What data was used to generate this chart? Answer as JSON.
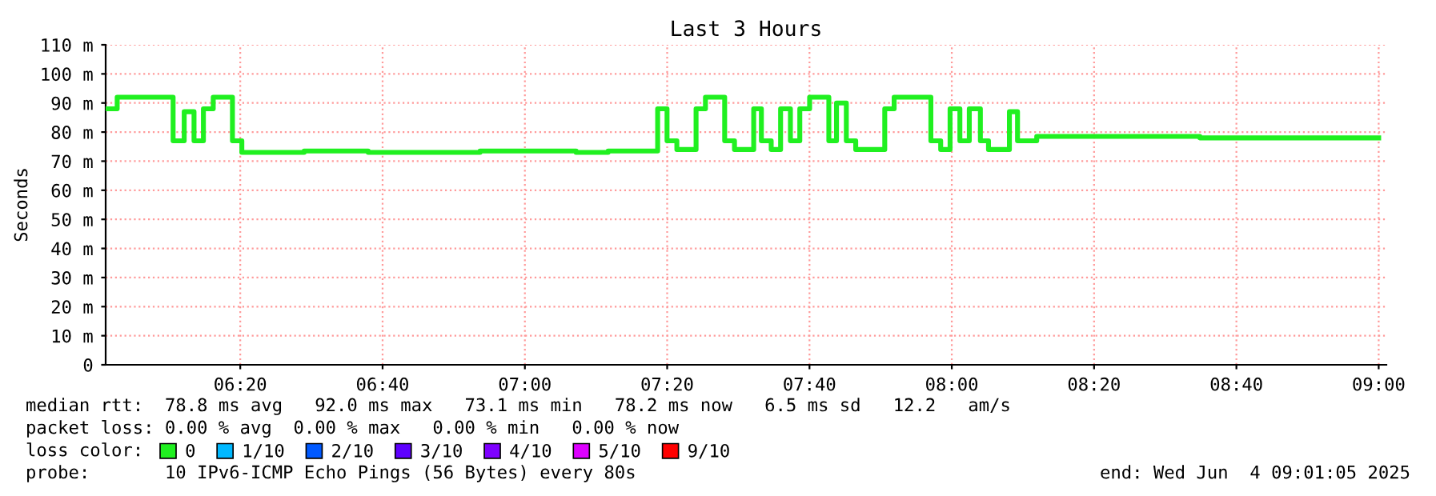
{
  "chart_data": {
    "type": "step",
    "title": "Last 3 Hours",
    "ylabel": "Seconds",
    "x": [
      6.019,
      6.045,
      6.176,
      6.202,
      6.225,
      6.247,
      6.27,
      6.315,
      6.337,
      6.483,
      6.633,
      6.895,
      7.12,
      7.195,
      7.311,
      7.333,
      7.356,
      7.401,
      7.423,
      7.468,
      7.491,
      7.536,
      7.554,
      7.577,
      7.599,
      7.622,
      7.644,
      7.667,
      7.712,
      7.73,
      7.753,
      7.775,
      7.843,
      7.865,
      7.951,
      7.974,
      7.996,
      8.019,
      8.041,
      8.067,
      8.086,
      8.135,
      8.154,
      8.199,
      8.581,
      9.0
    ],
    "series": [
      {
        "name": "0",
        "color": "#20f020",
        "values": [
          88,
          92,
          77,
          87,
          77,
          88,
          92,
          77,
          73,
          73.5,
          73,
          73.5,
          73,
          73.5,
          88,
          77,
          74,
          88,
          92,
          77,
          74,
          88,
          77,
          74,
          88,
          77,
          88,
          92,
          77,
          90,
          77,
          74,
          88,
          92,
          77,
          74,
          88,
          77,
          88,
          77,
          74,
          87,
          77,
          78.5,
          78,
          78
        ]
      },
      {
        "name": "1/10",
        "color": "#00b8ff",
        "values": [
          null,
          null,
          null,
          null,
          null,
          null,
          null,
          null,
          null,
          null,
          null,
          null,
          null,
          null,
          null,
          null,
          null,
          null,
          null,
          null,
          null,
          null,
          null,
          null,
          null,
          null,
          null,
          null,
          null,
          null,
          null,
          null,
          null,
          null,
          null,
          null,
          null,
          null,
          null,
          null,
          null,
          null,
          null,
          null,
          null,
          null
        ]
      },
      {
        "name": "2/10",
        "color": "#0059ff",
        "values": [
          null,
          null,
          null,
          null,
          null,
          null,
          null,
          null,
          null,
          null,
          null,
          null,
          null,
          null,
          null,
          null,
          null,
          null,
          null,
          null,
          null,
          null,
          null,
          null,
          null,
          null,
          null,
          null,
          null,
          null,
          null,
          null,
          null,
          null,
          null,
          null,
          null,
          null,
          null,
          null,
          null,
          null,
          null,
          null,
          null,
          null
        ]
      },
      {
        "name": "3/10",
        "color": "#5e00ff",
        "values": [
          null,
          null,
          null,
          null,
          null,
          null,
          null,
          null,
          null,
          null,
          null,
          null,
          null,
          null,
          null,
          null,
          null,
          null,
          null,
          null,
          null,
          null,
          null,
          null,
          null,
          null,
          null,
          null,
          null,
          null,
          null,
          null,
          null,
          null,
          null,
          null,
          null,
          null,
          null,
          null,
          null,
          null,
          null,
          null,
          null,
          null
        ]
      },
      {
        "name": "4/10",
        "color": "#7e00ff",
        "values": [
          null,
          null,
          null,
          null,
          null,
          null,
          null,
          null,
          null,
          null,
          null,
          null,
          null,
          null,
          null,
          null,
          null,
          null,
          null,
          null,
          null,
          null,
          null,
          null,
          null,
          null,
          null,
          null,
          null,
          null,
          null,
          null,
          null,
          null,
          null,
          null,
          null,
          null,
          null,
          null,
          null,
          null,
          null,
          null,
          null,
          null
        ]
      },
      {
        "name": "5/10",
        "color": "#dd00ff",
        "values": [
          null,
          null,
          null,
          null,
          null,
          null,
          null,
          null,
          null,
          null,
          null,
          null,
          null,
          null,
          null,
          null,
          null,
          null,
          null,
          null,
          null,
          null,
          null,
          null,
          null,
          null,
          null,
          null,
          null,
          null,
          null,
          null,
          null,
          null,
          null,
          null,
          null,
          null,
          null,
          null,
          null,
          null,
          null,
          null,
          null,
          null
        ]
      },
      {
        "name": "9/10",
        "color": "#ff0000",
        "values": [
          null,
          null,
          null,
          null,
          null,
          null,
          null,
          null,
          null,
          null,
          null,
          null,
          null,
          null,
          null,
          null,
          null,
          null,
          null,
          null,
          null,
          null,
          null,
          null,
          null,
          null,
          null,
          null,
          null,
          null,
          null,
          null,
          null,
          null,
          null,
          null,
          null,
          null,
          null,
          null,
          null,
          null,
          null,
          null,
          null,
          null
        ]
      }
    ],
    "legend": "bottom",
    "legend_title": "loss color:",
    "xlim": [
      6.018,
      9.018
    ],
    "xticks": [
      {
        "value": 6.3333,
        "label": "06:20"
      },
      {
        "value": 6.6667,
        "label": "06:40"
      },
      {
        "value": 7,
        "label": "07:00"
      },
      {
        "value": 7.3333,
        "label": "07:20"
      },
      {
        "value": 7.6667,
        "label": "07:40"
      },
      {
        "value": 8,
        "label": "08:00"
      },
      {
        "value": 8.3333,
        "label": "08:20"
      },
      {
        "value": 8.6667,
        "label": "08:40"
      },
      {
        "value": 9,
        "label": "09:00"
      }
    ],
    "ylim": [
      0,
      110
    ],
    "yticks": [
      0,
      {
        "value": 10,
        "label": "10 m"
      },
      {
        "value": 20,
        "label": "20 m"
      },
      {
        "value": 30,
        "label": "30 m"
      },
      {
        "value": 40,
        "label": "40 m"
      },
      {
        "value": 50,
        "label": "50 m"
      },
      {
        "value": 60,
        "label": "60 m"
      },
      {
        "value": 70,
        "label": "70 m"
      },
      {
        "value": 80,
        "label": "80 m"
      },
      {
        "value": 90,
        "label": "90 m"
      },
      {
        "value": 100,
        "label": "100 m"
      },
      {
        "value": 110,
        "label": "110 m"
      }
    ],
    "grid": true,
    "annotations": [
      "median rtt:  78.8 ms avg   92.0 ms max   73.1 ms min   78.2 ms now   6.5 ms sd   12.2   am/s",
      "packet loss: 0.00 % avg  0.00 % max   0.00 % min   0.00 % now",
      "probe:       10 IPv6-ICMP Echo Pings (56 Bytes) every 80s",
      "end: Wed Jun  4 09:01:05 2025"
    ]
  }
}
